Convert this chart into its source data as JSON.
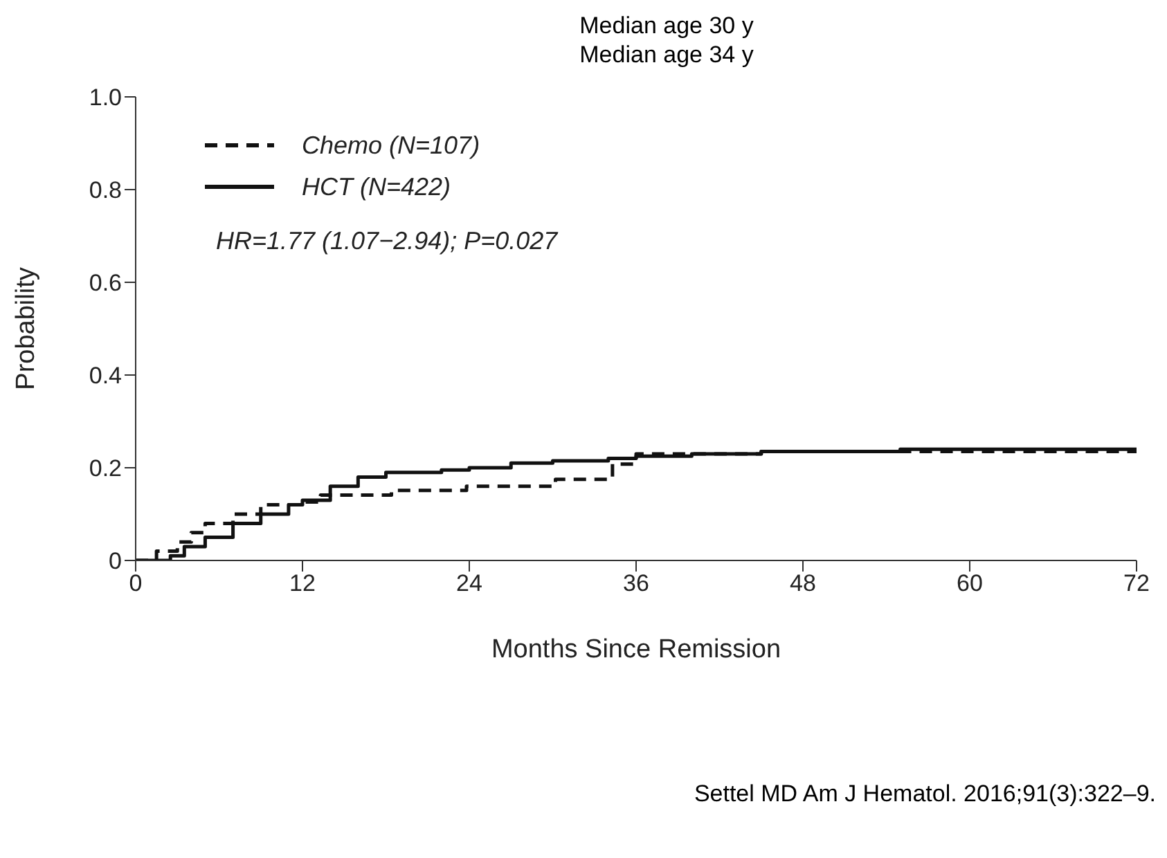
{
  "chart_data": {
    "type": "step",
    "title": "Median age 30 y",
    "subtitle": "Median age 34 y",
    "xlabel": "Months Since Remission",
    "ylabel": "Probability",
    "xlim": [
      0,
      72
    ],
    "xticks": [
      0,
      12,
      24,
      36,
      48,
      60,
      72
    ],
    "ylim": [
      0,
      1
    ],
    "yticks": [
      0,
      0.2,
      0.4,
      0.6,
      0.8,
      {
        "value": 1,
        "label": "1.0"
      }
    ],
    "legend": "top left",
    "marker": "none",
    "annotations": [
      "HR=1.77 (1.07−2.94); P=0.027",
      "Settel MD Am J Hematol. 2016;91(3):322–9."
    ],
    "series": [
      {
        "name": "Chemo (N=107)",
        "color": "#111111",
        "line_style": "dashed",
        "x": [
          0,
          1.5,
          3,
          4,
          5,
          7,
          9,
          12,
          13.3,
          18.4,
          23.8,
          30.2,
          34.3,
          36,
          45,
          72
        ],
        "values": [
          0,
          0.02,
          0.04,
          0.06,
          0.08,
          0.1,
          0.12,
          0.126,
          0.141,
          0.151,
          0.16,
          0.175,
          0.208,
          0.23,
          0.235,
          0.235
        ]
      },
      {
        "name": "HCT (N=422)",
        "color": "#111111",
        "line_style": "solid",
        "x": [
          0,
          2.5,
          3.5,
          5,
          7,
          9,
          11,
          12,
          14,
          16,
          18,
          22,
          24,
          27,
          30,
          34,
          36,
          40,
          45,
          55,
          72
        ],
        "values": [
          0,
          0.01,
          0.03,
          0.05,
          0.08,
          0.1,
          0.12,
          0.13,
          0.16,
          0.18,
          0.19,
          0.195,
          0.2,
          0.21,
          0.215,
          0.22,
          0.225,
          0.23,
          0.235,
          0.24,
          0.24
        ]
      }
    ]
  }
}
